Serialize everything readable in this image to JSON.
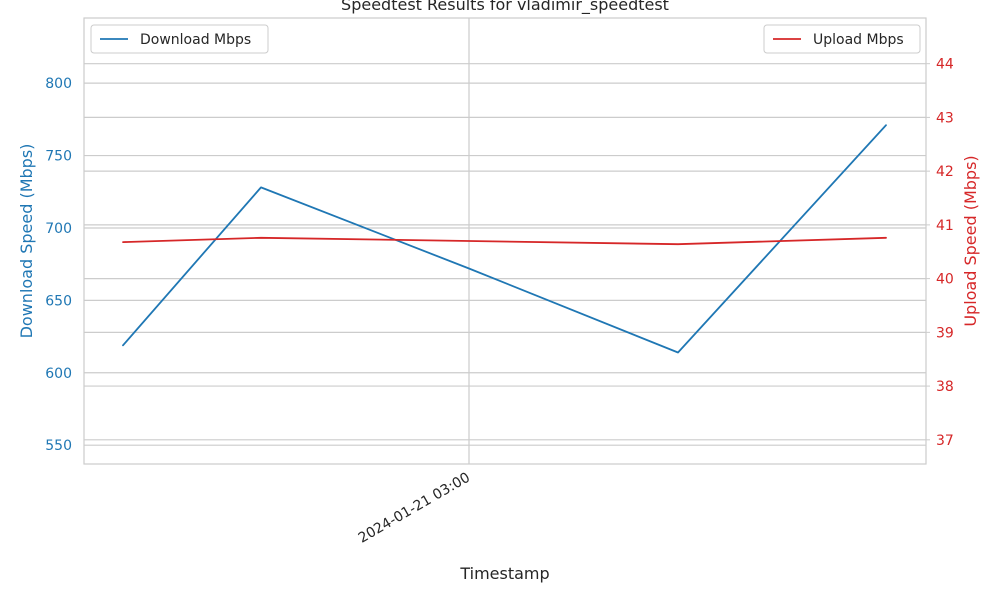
{
  "chart_data": {
    "type": "line",
    "title": "Speedtest Results for vladimir_speedtest",
    "xlabel": "Timestamp",
    "x": [
      "p1",
      "p2",
      "p3",
      "p4",
      "p5"
    ],
    "x_tick_labels": [
      {
        "label": "2024-01-21 03:00"
      }
    ],
    "series": [
      {
        "name": "Download Mbps",
        "axis": "left",
        "color": "#1f77b4",
        "values": [
          619,
          728,
          672,
          614,
          771
        ]
      },
      {
        "name": "Upload Mbps",
        "axis": "right",
        "color": "#d62728",
        "values": [
          40.68,
          40.76,
          40.7,
          40.64,
          40.76
        ]
      }
    ],
    "left_axis": {
      "label": "Download Speed (Mbps)",
      "color": "#1f77b4",
      "range": [
        537,
        845
      ],
      "ticks": [
        550,
        600,
        650,
        700,
        750,
        800
      ]
    },
    "right_axis": {
      "label": "Upload Speed (Mbps)",
      "color": "#d62728",
      "range": [
        36.55,
        44.85
      ],
      "ticks": [
        37,
        38,
        39,
        40,
        41,
        42,
        43,
        44
      ]
    },
    "grid": true,
    "legend_left": {
      "placement": "upper-left",
      "entry": "Download Mbps"
    },
    "legend_right": {
      "placement": "upper-right",
      "entry": "Upload Mbps"
    }
  }
}
